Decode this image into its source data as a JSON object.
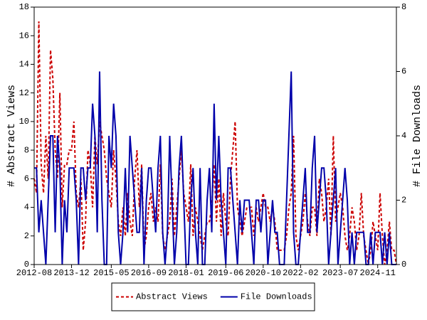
{
  "chart_data": {
    "type": "line",
    "y_label": "# Abstract Views",
    "y2_label": "# File Downloads",
    "categories": [
      "2012-08",
      "2012-09",
      "2012-10",
      "2012-11",
      "2012-12",
      "2013-01",
      "2013-02",
      "2013-03",
      "2013-04",
      "2013-05",
      "2013-06",
      "2013-07",
      "2013-08",
      "2013-09",
      "2013-10",
      "2013-11",
      "2013-12",
      "2014-01",
      "2014-02",
      "2014-03",
      "2014-04",
      "2014-05",
      "2014-06",
      "2014-07",
      "2014-08",
      "2014-09",
      "2014-10",
      "2014-11",
      "2014-12",
      "2015-01",
      "2015-02",
      "2015-03",
      "2015-04",
      "2015-05",
      "2015-06",
      "2015-07",
      "2015-08",
      "2015-09",
      "2015-10",
      "2015-11",
      "2015-12",
      "2016-01",
      "2016-02",
      "2016-03",
      "2016-04",
      "2016-05",
      "2016-06",
      "2016-07",
      "2016-08",
      "2016-09",
      "2016-10",
      "2016-11",
      "2016-12",
      "2017-01",
      "2017-02",
      "2017-03",
      "2017-04",
      "2017-05",
      "2017-06",
      "2017-07",
      "2017-08",
      "2017-09",
      "2017-10",
      "2017-11",
      "2017-12",
      "2018-01",
      "2018-02",
      "2018-03",
      "2018-04",
      "2018-05",
      "2018-06",
      "2018-07",
      "2018-08",
      "2018-09",
      "2018-10",
      "2018-11",
      "2018-12",
      "2019-01",
      "2019-02",
      "2019-03",
      "2019-04",
      "2019-05",
      "2019-06",
      "2019-07",
      "2019-08",
      "2019-09",
      "2019-10",
      "2019-11",
      "2019-12",
      "2020-01",
      "2020-02",
      "2020-03",
      "2020-04",
      "2020-05",
      "2020-06",
      "2020-07",
      "2020-08",
      "2020-09",
      "2020-10",
      "2020-11",
      "2020-12",
      "2021-01",
      "2021-02",
      "2021-03",
      "2021-04",
      "2021-05",
      "2021-06",
      "2021-07",
      "2021-08",
      "2021-09",
      "2021-10",
      "2021-11",
      "2021-12",
      "2022-01",
      "2022-02",
      "2022-03",
      "2022-04",
      "2022-05",
      "2022-06",
      "2022-07",
      "2022-08",
      "2022-09",
      "2022-10",
      "2022-11",
      "2022-12",
      "2023-01",
      "2023-02",
      "2023-03",
      "2023-04",
      "2023-05",
      "2023-06",
      "2023-07",
      "2023-08",
      "2023-09",
      "2023-10",
      "2023-11",
      "2023-12",
      "2024-01",
      "2024-02",
      "2024-03",
      "2024-04",
      "2024-05",
      "2024-06",
      "2024-07",
      "2024-08",
      "2024-09",
      "2024-10",
      "2024-11",
      "2024-12",
      "2025-01",
      "2025-02",
      "2025-03",
      "2025-04",
      "2025-05",
      "2025-06",
      "2025-07"
    ],
    "xticks": [
      "2012-08",
      "2013-12",
      "2015-05",
      "2016-09",
      "2018-01",
      "2019-06",
      "2020-10",
      "2022-02",
      "2023-07",
      "2024-11"
    ],
    "ylim": [
      0,
      18
    ],
    "yticks": [
      0,
      2,
      4,
      6,
      8,
      10,
      12,
      14,
      16,
      18
    ],
    "y2lim": [
      0,
      8
    ],
    "y2ticks": [
      0,
      2,
      4,
      6,
      8
    ],
    "legend": "bottom",
    "series": [
      {
        "name": "Abstract Views",
        "color": "#cc0000",
        "dash": true,
        "values": [
          6,
          5,
          17,
          7,
          5,
          9,
          6,
          15,
          13,
          8,
          6,
          12,
          4,
          7,
          7,
          8,
          8,
          10,
          5,
          4,
          6,
          1,
          3,
          8,
          7,
          4,
          9,
          7,
          10,
          9,
          8,
          6,
          5,
          4,
          8,
          6,
          3,
          2,
          4,
          2,
          5,
          3,
          2,
          6,
          8,
          4,
          7,
          1,
          2,
          4,
          5,
          3,
          4,
          3,
          7,
          2,
          1,
          2,
          3,
          6,
          2,
          4,
          6,
          8,
          5,
          4,
          3,
          7,
          2,
          4,
          3,
          2,
          1,
          2,
          3,
          3,
          4,
          7,
          3,
          6,
          2,
          5,
          3,
          2,
          6,
          8,
          10,
          4,
          3,
          2,
          3,
          4,
          4,
          4,
          2,
          4,
          3,
          4,
          5,
          4,
          4,
          3,
          4,
          3,
          1,
          1,
          1,
          1,
          2,
          4,
          5,
          9,
          2,
          1,
          2,
          3,
          5,
          3,
          2,
          4,
          4,
          2,
          6,
          5,
          3,
          4,
          6,
          2,
          9,
          3,
          4,
          5,
          4,
          2,
          1,
          2,
          4,
          3,
          1,
          2,
          5,
          2,
          1,
          0,
          1,
          3,
          2,
          1,
          5,
          2,
          0,
          1,
          3,
          1,
          1,
          0
        ]
      },
      {
        "name": "File Downloads",
        "color": "#0000aa",
        "dash": false,
        "axis": "y2",
        "values": [
          3,
          3,
          1,
          2,
          1,
          0,
          2,
          4,
          4,
          1,
          4,
          3,
          0,
          2,
          1,
          3,
          3,
          3,
          2,
          0,
          3,
          3,
          2,
          3,
          3,
          5,
          4,
          1,
          6,
          2,
          0,
          0,
          4,
          3,
          5,
          4,
          1,
          0,
          1,
          3,
          1,
          4,
          3,
          2,
          1,
          1,
          3,
          0,
          2,
          3,
          3,
          2,
          1,
          3,
          4,
          1,
          0,
          1,
          4,
          2,
          0,
          1,
          3,
          4,
          2,
          0,
          0,
          2,
          3,
          1,
          0,
          3,
          0,
          0,
          2,
          3,
          1,
          5,
          2,
          4,
          2,
          1,
          0,
          3,
          3,
          2,
          1,
          0,
          2,
          1,
          2,
          2,
          2,
          1,
          0,
          2,
          2,
          1,
          2,
          2,
          0,
          1,
          2,
          1,
          1,
          0,
          0,
          0,
          2,
          4,
          6,
          1,
          0,
          0,
          1,
          2,
          3,
          1,
          1,
          3,
          4,
          1,
          2,
          3,
          3,
          2,
          0,
          1,
          2,
          3,
          0,
          1,
          2,
          3,
          2,
          0,
          1,
          0,
          1,
          1,
          1,
          1,
          0,
          0,
          1,
          0,
          1,
          1,
          1,
          0,
          1,
          0,
          1,
          0,
          0,
          0
        ]
      }
    ]
  }
}
